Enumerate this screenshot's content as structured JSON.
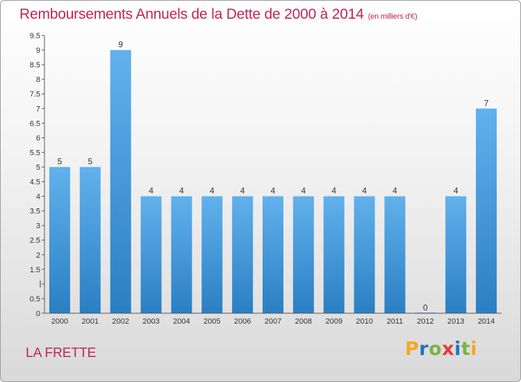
{
  "header": {
    "title": "Remboursements Annuels de la Dette de 2000 à 2014",
    "subtitle": "(en milliers d'€)"
  },
  "footer": {
    "commune": "LA FRETTE",
    "logo_text": "Proxiti",
    "logo_colors": [
      "#f5a623",
      "#1e73be",
      "#7cb342",
      "#e53935",
      "#1e73be",
      "#7cb342",
      "#f5a623"
    ]
  },
  "colors": {
    "title": "#c0245c",
    "bar_light": "#62b1ec",
    "bar_dark": "#2a7fc3",
    "axis": "#555555"
  },
  "chart_data": {
    "type": "bar",
    "title": "Remboursements Annuels de la Dette de 2000 à 2014",
    "subtitle": "(en milliers d'€)",
    "categories": [
      "2000",
      "2001",
      "2002",
      "2003",
      "2004",
      "2005",
      "2006",
      "2007",
      "2008",
      "2009",
      "2010",
      "2011",
      "2012",
      "2013",
      "2014"
    ],
    "values": [
      5,
      5,
      9,
      4,
      4,
      4,
      4,
      4,
      4,
      4,
      4,
      4,
      0,
      4,
      7
    ],
    "data_labels": [
      "5",
      "5",
      "9",
      "4",
      "4",
      "4",
      "4",
      "4",
      "4",
      "4",
      "4",
      "4",
      "0",
      "4",
      "7"
    ],
    "ylim": [
      0,
      9.5
    ],
    "yticks": [
      0,
      0.5,
      1,
      1.5,
      2,
      2.5,
      3,
      3.5,
      4,
      4.5,
      5,
      5.5,
      6,
      6.5,
      7,
      7.5,
      8,
      8.5,
      9,
      9.5
    ],
    "ytick_labels": [
      "0",
      "0.5",
      "",
      "1.5",
      "2",
      "2.5",
      "3",
      "3.5",
      "4",
      "4.5",
      "5",
      "5.5",
      "6",
      "6.5",
      "7",
      "7.5",
      "8",
      "8.5",
      "9",
      "9.5"
    ],
    "grid": false,
    "legend": "none"
  }
}
